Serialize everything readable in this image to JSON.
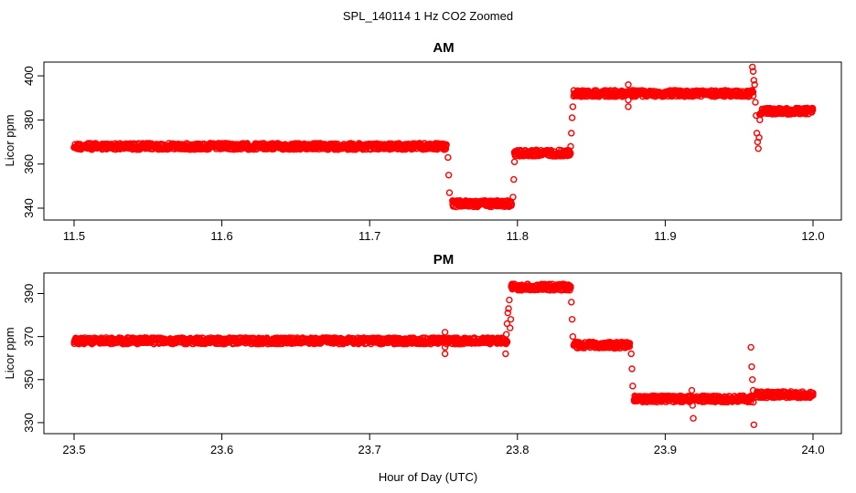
{
  "figure": {
    "title": "SPL_140114  1 Hz CO2 Zoomed",
    "xlabel": "Hour of Day (UTC)"
  },
  "chart_data": [
    {
      "type": "scatter",
      "title": "AM",
      "xlabel": "",
      "ylabel": "Licor ppm",
      "xlim": [
        11.5,
        12.0
      ],
      "ylim": [
        340,
        405
      ],
      "xticks": [
        "11.5",
        "11.6",
        "11.7",
        "11.8",
        "11.9",
        "12.0"
      ],
      "xtick_values": [
        11.5,
        11.6,
        11.7,
        11.8,
        11.9,
        12.0
      ],
      "yticks": [
        "340",
        "360",
        "380",
        "400"
      ],
      "ytick_values": [
        340,
        360,
        380,
        400
      ],
      "grid": false,
      "color": "#ff0000",
      "marker": "open-circle",
      "segments": [
        {
          "x": [
            11.5,
            11.752
          ],
          "y": 368
        },
        {
          "x": [
            11.756,
            11.796
          ],
          "y": 342
        },
        {
          "x": [
            11.798,
            11.836
          ],
          "y": 365
        },
        {
          "x": [
            11.838,
            11.96
          ],
          "y": 392
        },
        {
          "x": [
            11.964,
            12.0
          ],
          "y": 384
        }
      ],
      "points": [
        {
          "x": 11.753,
          "y": 363
        },
        {
          "x": 11.7535,
          "y": 355
        },
        {
          "x": 11.754,
          "y": 347
        },
        {
          "x": 11.797,
          "y": 345
        },
        {
          "x": 11.7975,
          "y": 353
        },
        {
          "x": 11.798,
          "y": 361
        },
        {
          "x": 11.836,
          "y": 368
        },
        {
          "x": 11.8365,
          "y": 374
        },
        {
          "x": 11.837,
          "y": 381
        },
        {
          "x": 11.8375,
          "y": 386
        },
        {
          "x": 11.875,
          "y": 396
        },
        {
          "x": 11.875,
          "y": 389
        },
        {
          "x": 11.875,
          "y": 386
        },
        {
          "x": 11.959,
          "y": 404
        },
        {
          "x": 11.9595,
          "y": 402
        },
        {
          "x": 11.96,
          "y": 398
        },
        {
          "x": 11.9605,
          "y": 396
        },
        {
          "x": 11.961,
          "y": 388
        },
        {
          "x": 11.9615,
          "y": 382
        },
        {
          "x": 11.962,
          "y": 374
        },
        {
          "x": 11.9625,
          "y": 370
        },
        {
          "x": 11.963,
          "y": 367
        },
        {
          "x": 11.9635,
          "y": 372
        },
        {
          "x": 11.964,
          "y": 380
        }
      ]
    },
    {
      "type": "scatter",
      "title": "PM",
      "xlabel": "",
      "ylabel": "Licor ppm",
      "xlim": [
        23.5,
        24.0
      ],
      "ylim": [
        327,
        397
      ],
      "xticks": [
        "23.5",
        "23.6",
        "23.7",
        "23.8",
        "23.9",
        "24.0"
      ],
      "xtick_values": [
        23.5,
        23.6,
        23.7,
        23.8,
        23.9,
        24.0
      ],
      "yticks": [
        "330",
        "350",
        "370",
        "390"
      ],
      "ytick_values": [
        330,
        350,
        370,
        390
      ],
      "grid": false,
      "color": "#ff0000",
      "marker": "open-circle",
      "segments": [
        {
          "x": [
            23.5,
            23.793
          ],
          "y": 368
        },
        {
          "x": [
            23.796,
            23.836
          ],
          "y": 393
        },
        {
          "x": [
            23.838,
            23.876
          ],
          "y": 366
        },
        {
          "x": [
            23.879,
            23.96
          ],
          "y": 341
        },
        {
          "x": [
            23.962,
            24.0
          ],
          "y": 343
        }
      ],
      "points": [
        {
          "x": 23.751,
          "y": 372
        },
        {
          "x": 23.751,
          "y": 365
        },
        {
          "x": 23.751,
          "y": 362
        },
        {
          "x": 23.792,
          "y": 362
        },
        {
          "x": 23.7925,
          "y": 371
        },
        {
          "x": 23.793,
          "y": 376
        },
        {
          "x": 23.7935,
          "y": 381
        },
        {
          "x": 23.794,
          "y": 383
        },
        {
          "x": 23.7945,
          "y": 387
        },
        {
          "x": 23.795,
          "y": 374
        },
        {
          "x": 23.7955,
          "y": 378
        },
        {
          "x": 23.8365,
          "y": 386
        },
        {
          "x": 23.837,
          "y": 378
        },
        {
          "x": 23.8375,
          "y": 370
        },
        {
          "x": 23.877,
          "y": 362
        },
        {
          "x": 23.8775,
          "y": 355
        },
        {
          "x": 23.878,
          "y": 347
        },
        {
          "x": 23.918,
          "y": 345
        },
        {
          "x": 23.9185,
          "y": 338
        },
        {
          "x": 23.919,
          "y": 332
        },
        {
          "x": 23.958,
          "y": 365
        },
        {
          "x": 23.9585,
          "y": 356
        },
        {
          "x": 23.959,
          "y": 350
        },
        {
          "x": 23.9595,
          "y": 345
        },
        {
          "x": 23.96,
          "y": 329
        }
      ]
    }
  ]
}
